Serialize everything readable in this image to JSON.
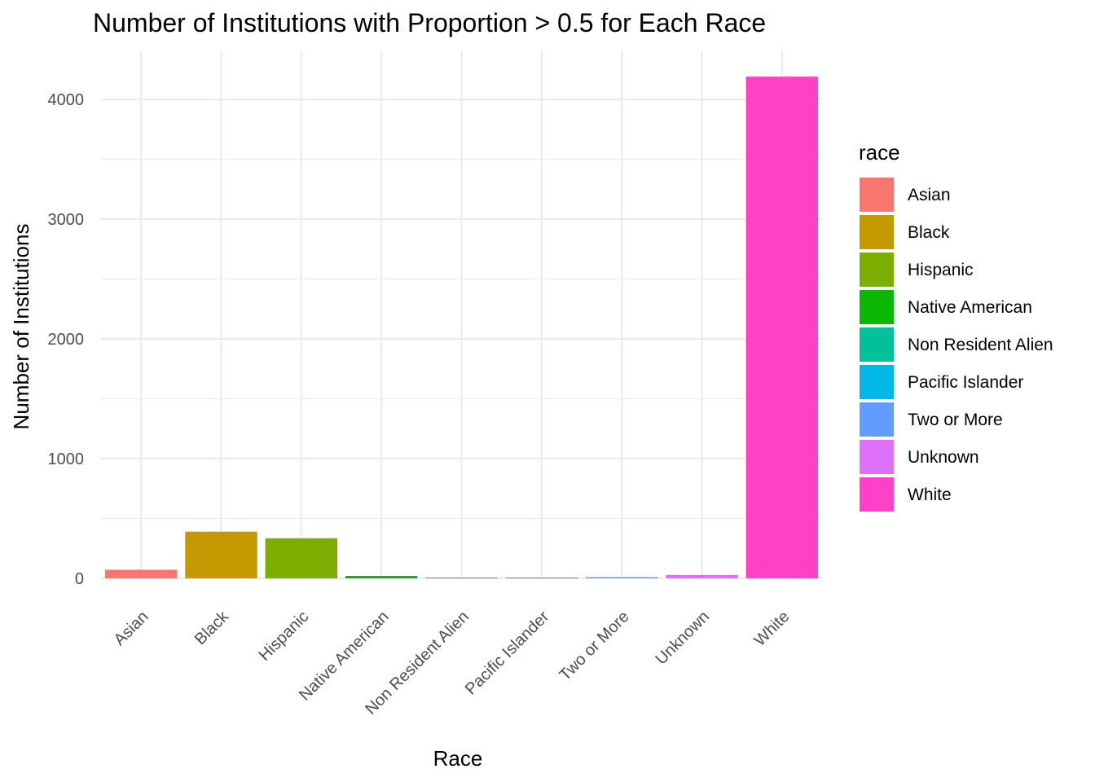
{
  "chart_data": {
    "type": "bar",
    "title": "Number of Institutions with Proportion > 0.5 for Each Race",
    "xlabel": "Race",
    "ylabel": "Number of Institutions",
    "categories": [
      "Asian",
      "Black",
      "Hispanic",
      "Native American",
      "Non Resident Alien",
      "Pacific Islander",
      "Two or More",
      "Unknown",
      "White"
    ],
    "values": [
      72,
      390,
      335,
      20,
      2,
      2,
      10,
      28,
      4190
    ],
    "colors": [
      "#F8766D",
      "#C49A00",
      "#7CAE00",
      "#0CB702",
      "#00C19A",
      "#00B8E7",
      "#619CFF",
      "#DF70F8",
      "#FF41C8"
    ],
    "ylim": [
      0,
      4400
    ],
    "yticks": [
      0,
      1000,
      2000,
      3000,
      4000
    ],
    "grid": true,
    "legend": {
      "title": "race",
      "position": "right",
      "entries": [
        "Asian",
        "Black",
        "Hispanic",
        "Native American",
        "Non Resident Alien",
        "Pacific Islander",
        "Two or More",
        "Unknown",
        "White"
      ]
    }
  }
}
